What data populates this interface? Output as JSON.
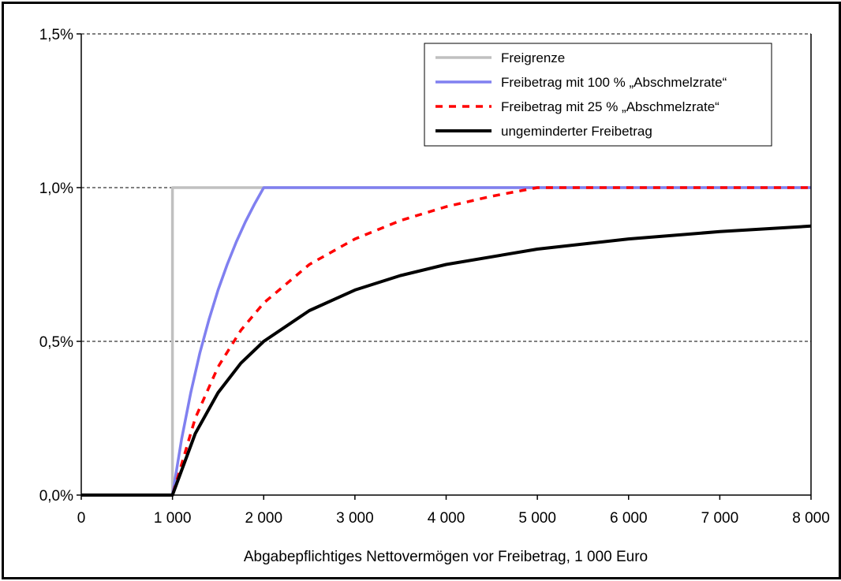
{
  "chart_data": {
    "type": "line",
    "title": "",
    "xlabel": "Abgabepflichtiges Nettovermögen vor Freibetrag, 1 000 Euro",
    "ylabel": "",
    "xlim": [
      0,
      8000
    ],
    "ylim": [
      0,
      1.5
    ],
    "x_ticks": [
      {
        "value": 0,
        "label": "0"
      },
      {
        "value": 1000,
        "label": "1 000"
      },
      {
        "value": 2000,
        "label": "2 000"
      },
      {
        "value": 3000,
        "label": "3 000"
      },
      {
        "value": 4000,
        "label": "4 000"
      },
      {
        "value": 5000,
        "label": "5 000"
      },
      {
        "value": 6000,
        "label": "6 000"
      },
      {
        "value": 7000,
        "label": "7 000"
      },
      {
        "value": 8000,
        "label": "8 000"
      }
    ],
    "y_ticks": [
      {
        "value": 0,
        "label": "0,0%"
      },
      {
        "value": 0.5,
        "label": "0,5%"
      },
      {
        "value": 1.0,
        "label": "1,0%"
      },
      {
        "value": 1.5,
        "label": "1,5%"
      }
    ],
    "grid": "horizontal-dashed",
    "legend_position": "top-right",
    "series": [
      {
        "name": "Freigrenze",
        "color": "#c0c0c0",
        "style": "solid",
        "points": [
          [
            0,
            0
          ],
          [
            1000,
            0
          ],
          [
            1000,
            1.0
          ],
          [
            8000,
            1.0
          ]
        ]
      },
      {
        "name": "Freibetrag mit 100 % „Abschmelzrate“",
        "color": "#8080f0",
        "style": "solid",
        "points": [
          [
            0,
            0
          ],
          [
            1000,
            0
          ],
          [
            1100,
            0.182
          ],
          [
            1200,
            0.333
          ],
          [
            1300,
            0.462
          ],
          [
            1400,
            0.571
          ],
          [
            1500,
            0.667
          ],
          [
            1600,
            0.75
          ],
          [
            1700,
            0.824
          ],
          [
            1800,
            0.889
          ],
          [
            1900,
            0.947
          ],
          [
            2000,
            1.0
          ],
          [
            8000,
            1.0
          ]
        ]
      },
      {
        "name": "Freibetrag mit 25 % „Abschmelzrate“",
        "color": "#ff0000",
        "style": "dashed",
        "points": [
          [
            0,
            0
          ],
          [
            1000,
            0
          ],
          [
            1250,
            0.25
          ],
          [
            1500,
            0.417
          ],
          [
            1750,
            0.536
          ],
          [
            2000,
            0.625
          ],
          [
            2500,
            0.75
          ],
          [
            3000,
            0.833
          ],
          [
            3500,
            0.893
          ],
          [
            4000,
            0.938
          ],
          [
            4500,
            0.972
          ],
          [
            5000,
            1.0
          ],
          [
            8000,
            1.0
          ]
        ]
      },
      {
        "name": "ungeminderter Freibetrag",
        "color": "#000000",
        "style": "solid",
        "points": [
          [
            0,
            0
          ],
          [
            1000,
            0
          ],
          [
            1250,
            0.2
          ],
          [
            1500,
            0.333
          ],
          [
            1750,
            0.429
          ],
          [
            2000,
            0.5
          ],
          [
            2500,
            0.6
          ],
          [
            3000,
            0.667
          ],
          [
            3500,
            0.714
          ],
          [
            4000,
            0.75
          ],
          [
            5000,
            0.8
          ],
          [
            6000,
            0.833
          ],
          [
            7000,
            0.857
          ],
          [
            8000,
            0.875
          ]
        ]
      }
    ]
  }
}
